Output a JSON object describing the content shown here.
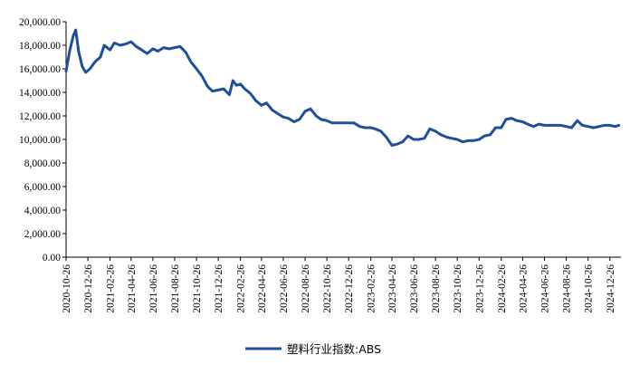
{
  "chart_data": {
    "type": "line",
    "ylim": [
      0,
      20000
    ],
    "y_ticks": [
      "0.00",
      "2,000.00",
      "4,000.00",
      "6,000.00",
      "8,000.00",
      "10,000.00",
      "12,000.00",
      "14,000.00",
      "16,000.00",
      "18,000.00",
      "20,000.00"
    ],
    "x_ticks": [
      "2020-10-26",
      "2020-12-26",
      "2021-02-26",
      "2021-04-26",
      "2021-06-26",
      "2021-08-26",
      "2021-10-26",
      "2021-12-26",
      "2022-02-26",
      "2022-04-26",
      "2022-06-26",
      "2022-08-26",
      "2022-10-26",
      "2022-12-26",
      "2023-02-26",
      "2023-04-26",
      "2023-06-26",
      "2023-08-26",
      "2023-10-26",
      "2023-12-26",
      "2024-02-26",
      "2024-04-26",
      "2024-06-26",
      "2024-08-26",
      "2024-10-26",
      "2024-12-26"
    ],
    "grid": false,
    "legend_position": "bottom-center",
    "line_color": "#1F4E9A",
    "series": [
      {
        "name": "塑料行业指数:ABS",
        "x": [
          "2020-10-26",
          "2020-11-05",
          "2020-11-15",
          "2020-11-22",
          "2020-11-30",
          "2020-12-10",
          "2020-12-20",
          "2021-01-01",
          "2021-01-15",
          "2021-01-30",
          "2021-02-10",
          "2021-02-26",
          "2021-03-10",
          "2021-03-26",
          "2021-04-10",
          "2021-04-26",
          "2021-05-10",
          "2021-05-26",
          "2021-06-10",
          "2021-06-26",
          "2021-07-10",
          "2021-07-26",
          "2021-08-10",
          "2021-08-26",
          "2021-09-10",
          "2021-09-26",
          "2021-10-10",
          "2021-10-26",
          "2021-11-10",
          "2021-11-26",
          "2021-12-10",
          "2021-12-26",
          "2022-01-10",
          "2022-01-26",
          "2022-02-05",
          "2022-02-15",
          "2022-02-26",
          "2022-03-10",
          "2022-03-26",
          "2022-04-10",
          "2022-04-26",
          "2022-05-10",
          "2022-05-26",
          "2022-06-10",
          "2022-06-26",
          "2022-07-10",
          "2022-07-26",
          "2022-08-10",
          "2022-08-26",
          "2022-09-10",
          "2022-09-26",
          "2022-10-10",
          "2022-10-26",
          "2022-11-10",
          "2022-11-26",
          "2022-12-10",
          "2022-12-26",
          "2023-01-10",
          "2023-01-26",
          "2023-02-10",
          "2023-02-26",
          "2023-03-10",
          "2023-03-26",
          "2023-04-10",
          "2023-04-26",
          "2023-05-10",
          "2023-05-26",
          "2023-06-10",
          "2023-06-26",
          "2023-07-10",
          "2023-07-26",
          "2023-08-10",
          "2023-08-26",
          "2023-09-10",
          "2023-09-26",
          "2023-10-10",
          "2023-10-26",
          "2023-11-10",
          "2023-11-26",
          "2023-12-10",
          "2023-12-26",
          "2024-01-10",
          "2024-01-26",
          "2024-02-10",
          "2024-02-26",
          "2024-03-10",
          "2024-03-26",
          "2024-04-10",
          "2024-04-26",
          "2024-05-10",
          "2024-05-26",
          "2024-06-10",
          "2024-06-26",
          "2024-07-10",
          "2024-07-26",
          "2024-08-10",
          "2024-08-26",
          "2024-09-10",
          "2024-09-26",
          "2024-10-10",
          "2024-10-26",
          "2024-11-10",
          "2024-11-26",
          "2024-12-10",
          "2024-12-26",
          "2025-01-10",
          "2025-01-20"
        ],
        "values": [
          15800,
          17500,
          18800,
          19300,
          17500,
          16200,
          15700,
          16000,
          16600,
          17000,
          18000,
          17600,
          18200,
          18000,
          18100,
          18300,
          17900,
          17600,
          17300,
          17700,
          17500,
          17800,
          17700,
          17800,
          17900,
          17400,
          16600,
          16000,
          15400,
          14500,
          14100,
          14200,
          14300,
          13800,
          15000,
          14600,
          14700,
          14300,
          13900,
          13300,
          12900,
          13100,
          12500,
          12200,
          11900,
          11800,
          11500,
          11700,
          12400,
          12600,
          12000,
          11700,
          11600,
          11400,
          11400,
          11400,
          11400,
          11400,
          11100,
          11000,
          11000,
          10900,
          10700,
          10200,
          9500,
          9600,
          9800,
          10300,
          10000,
          10000,
          10100,
          10900,
          10700,
          10400,
          10200,
          10100,
          10000,
          9800,
          9900,
          9900,
          10000,
          10300,
          10400,
          11000,
          11000,
          11700,
          11800,
          11600,
          11500,
          11300,
          11100,
          11300,
          11200,
          11200,
          11200,
          11200,
          11100,
          11000,
          11600,
          11200,
          11100,
          11000,
          11100,
          11200,
          11200,
          11100,
          11200
        ]
      }
    ]
  }
}
